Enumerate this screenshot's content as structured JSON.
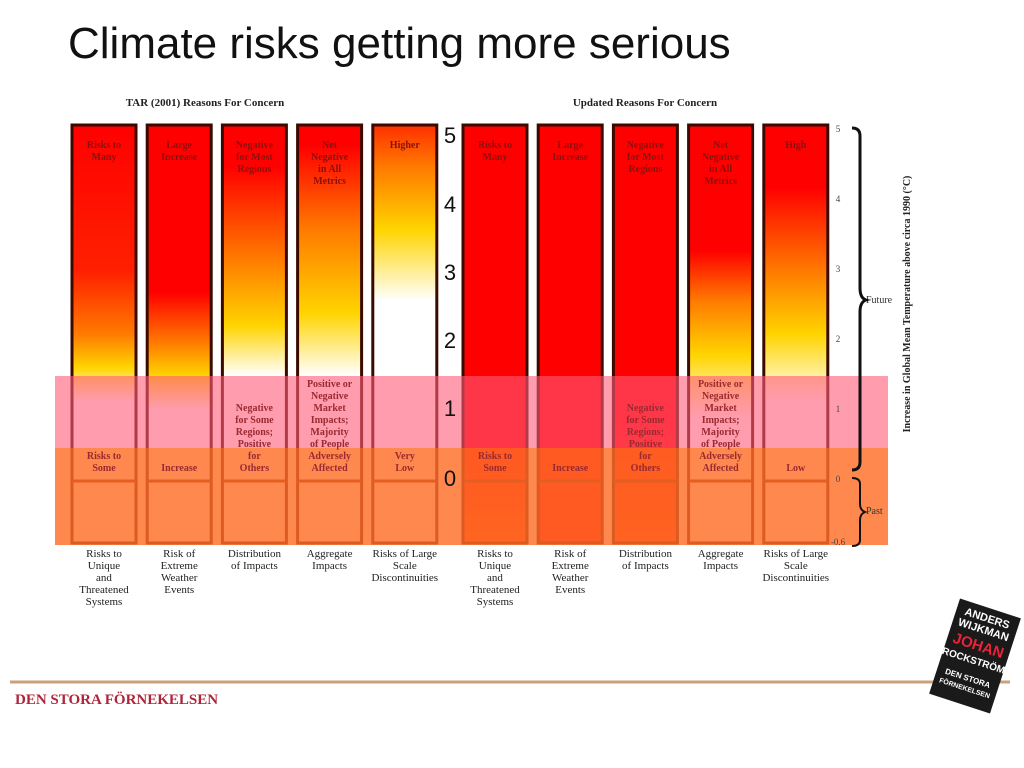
{
  "title": "Climate risks getting more serious",
  "panels": [
    {
      "heading": "TAR (2001) Reasons For Concern",
      "columns": [
        {
          "top": [
            "Risks to",
            "Many"
          ],
          "low": [
            "Risks to",
            "Some"
          ],
          "caption": [
            "Risks to",
            "Unique",
            "and",
            "Threatened",
            "Systems"
          ]
        },
        {
          "top": [
            "Large",
            "Increase"
          ],
          "low": [
            "Increase"
          ],
          "caption": [
            "Risk of",
            "Extreme",
            "Weather",
            "Events"
          ]
        },
        {
          "top": [
            "Negative",
            "for Most",
            "Regions"
          ],
          "low": [
            "Negative",
            "for Some",
            "Regions;",
            "Positive",
            "for",
            "Others"
          ],
          "caption": [
            "Distribution",
            "of Impacts"
          ]
        },
        {
          "top": [
            "Net",
            "Negative",
            "in All",
            "Metrics"
          ],
          "low": [
            "Positive or",
            "Negative",
            "Market",
            "Impacts;",
            "Majority",
            "of People",
            "Adversely",
            "Affected"
          ],
          "caption": [
            "Aggregate",
            "Impacts"
          ]
        },
        {
          "top": [
            "Higher"
          ],
          "low": [
            "Very",
            "Low"
          ],
          "caption": [
            "Risks of Large",
            "Scale",
            "Discontinuities"
          ]
        }
      ]
    },
    {
      "heading": "Updated Reasons For Concern",
      "columns": [
        {
          "top": [
            "Risks to",
            "Many"
          ],
          "low": [
            "Risks to",
            "Some"
          ],
          "caption": [
            "Risks to",
            "Unique",
            "and",
            "Threatened",
            "Systems"
          ]
        },
        {
          "top": [
            "Large",
            "Increase"
          ],
          "low": [
            "Increase"
          ],
          "caption": [
            "Risk of",
            "Extreme",
            "Weather",
            "Events"
          ]
        },
        {
          "top": [
            "Negative",
            "for Most",
            "Regions"
          ],
          "low": [
            "Negative",
            "for Some",
            "Regions;",
            "Positive",
            "for",
            "Others"
          ],
          "caption": [
            "Distribution",
            "of Impacts"
          ]
        },
        {
          "top": [
            "Net",
            "Negative",
            "in All",
            "Metrics"
          ],
          "low": [
            "Positive or",
            "Negative",
            "Market",
            "Impacts;",
            "Majority",
            "of People",
            "Adversely",
            "Affected"
          ],
          "caption": [
            "Aggregate",
            "Impacts"
          ]
        },
        {
          "top": [
            "High"
          ],
          "low": [
            "Low"
          ],
          "caption": [
            "Risks of Large",
            "Scale",
            "Discontinuities"
          ]
        }
      ]
    }
  ],
  "big_scale": [
    "5",
    "4",
    "3",
    "2",
    "1",
    "0"
  ],
  "axis": {
    "ticks": [
      "5",
      "4",
      "3",
      "2",
      "1",
      "0",
      "-0.6"
    ],
    "title": "Increase in Global Mean Temperature above circa 1990 (°C)",
    "future": "Future",
    "past": "Past"
  },
  "footer": "DEN STORA FÖRNEKELSEN",
  "book": [
    "ANDERS",
    "WIJKMAN",
    "JOHAN",
    "ROCKSTRÖM",
    "DEN STORA",
    "FÖRNEKELSEN"
  ]
}
